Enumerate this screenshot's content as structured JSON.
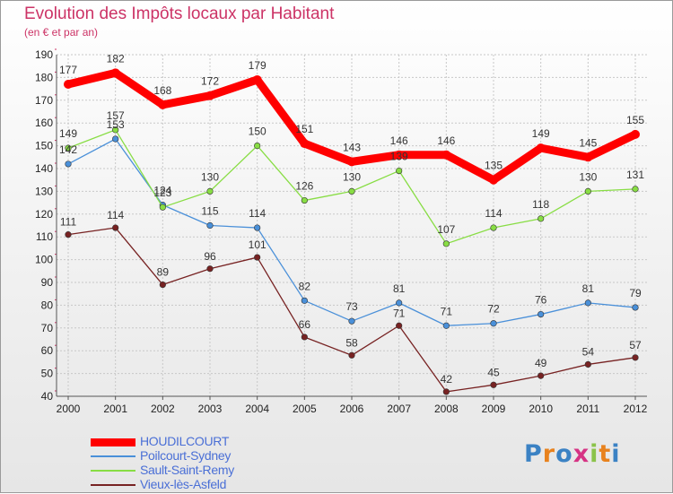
{
  "title": "Evolution des Impôts locaux par Habitant",
  "subtitle": "(en € et par an)",
  "logo_text": "Proxiti",
  "chart_data": {
    "type": "line",
    "title": "Evolution des Impôts locaux par Habitant",
    "subtitle": "(en € et par an)",
    "xlabel": "",
    "ylabel": "",
    "ylim": [
      40,
      190
    ],
    "ytick_step": 10,
    "grid": true,
    "legend_position": "bottom-left",
    "x": [
      "2000",
      "2001",
      "2002",
      "2003",
      "2004",
      "2005",
      "2006",
      "2007",
      "2008",
      "2009",
      "2010",
      "2011",
      "2012"
    ],
    "series": [
      {
        "name": "HOUDILCOURT",
        "color": "#ff0000",
        "values": [
          177,
          182,
          168,
          172,
          179,
          151,
          143,
          146,
          146,
          135,
          149,
          145,
          155
        ]
      },
      {
        "name": "Poilcourt-Sydney",
        "color": "#4a90d9",
        "values": [
          142,
          153,
          124,
          115,
          114,
          82,
          73,
          81,
          71,
          72,
          76,
          81,
          79
        ]
      },
      {
        "name": "Sault-Saint-Remy",
        "color": "#88dd44",
        "values": [
          149,
          157,
          123,
          130,
          150,
          126,
          130,
          139,
          107,
          114,
          118,
          130,
          131
        ]
      },
      {
        "name": "Vieux-lès-Asfeld",
        "color": "#772222",
        "values": [
          111,
          114,
          89,
          96,
          101,
          66,
          58,
          71,
          42,
          45,
          49,
          54,
          57
        ]
      }
    ]
  }
}
